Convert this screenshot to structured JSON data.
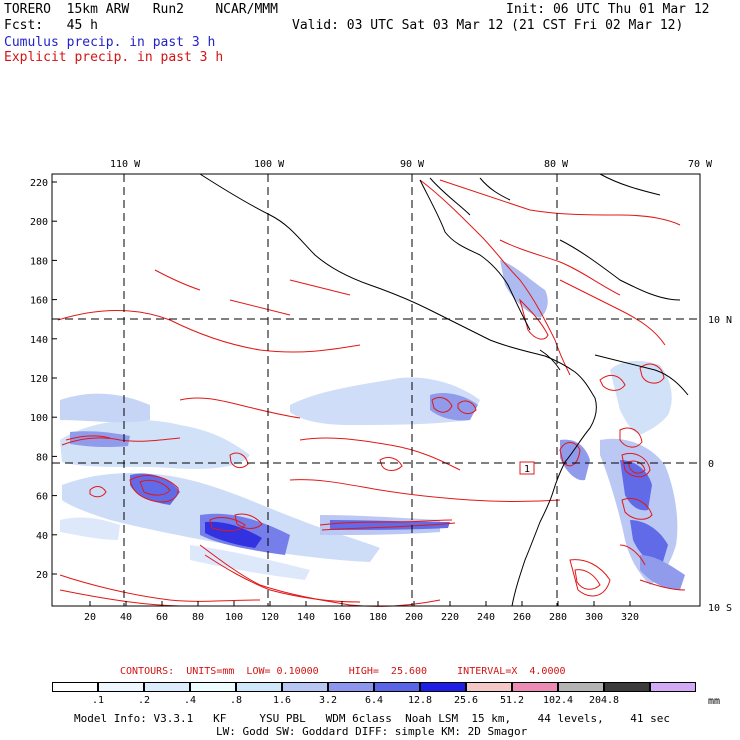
{
  "header": {
    "model": "TORERO  15km ARW   Run2    NCAR/MMM",
    "init": "Init: 06 UTC Thu 01 Mar 12",
    "fcst": "Fcst:   45 h",
    "valid": "Valid: 03 UTC Sat 03 Mar 12 (21 CST Fri 02 Mar 12)",
    "field1": "Cumulus precip. in past 3 h",
    "field2": "Explicit precip. in past 3 h"
  },
  "map": {
    "lon_labels": [
      "110 W",
      "100 W",
      "90 W",
      "80 W",
      "70 W"
    ],
    "lat_labels": [
      "10 N",
      "0",
      "10 S"
    ],
    "x_ticks": [
      "20",
      "40",
      "60",
      "80",
      "100",
      "120",
      "140",
      "160",
      "180",
      "200",
      "220",
      "240",
      "260",
      "280",
      "300",
      "320"
    ],
    "y_ticks": [
      "220",
      "200",
      "180",
      "160",
      "140",
      "120",
      "100",
      "80",
      "60",
      "40",
      "20"
    ],
    "box_label": "1"
  },
  "contours_info": {
    "text": "CONTOURS:  UNITS=mm  LOW= 0.10000     HIGH=  25.600     INTERVAL=X  4.0000"
  },
  "colorbar": {
    "colors": [
      "#ffffff",
      "#eef6ff",
      "#dcecfd",
      "#eefdfd",
      "#cfe8fa",
      "#b8c6f3",
      "#8c96ec",
      "#5a64e6",
      "#1e1ee6",
      "#f5c8c8",
      "#ec8cb4",
      "#b4b4b4",
      "#3c3c3c",
      "#d2aaf5"
    ],
    "labels": [
      ".1",
      ".2",
      ".4",
      ".8",
      "1.6",
      "3.2",
      "6.4",
      "12.8",
      "25.6",
      "51.2",
      "102.4",
      "204.8"
    ],
    "units": "mm"
  },
  "footer": {
    "line1": "Model Info: V3.3.1   KF     YSU PBL   WDM 6class  Noah LSM  15 km,    44 levels,    41 sec",
    "line2": "LW: Godd SW: Goddard DIFF: simple KM: 2D Smagor"
  }
}
